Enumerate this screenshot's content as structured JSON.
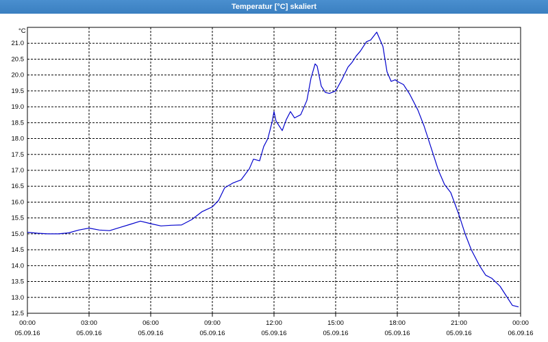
{
  "window": {
    "title": "Temperatur [°C] skaliert"
  },
  "chart_data": {
    "type": "line",
    "unit_label": "°C",
    "ylim": [
      12.5,
      21.5
    ],
    "yticks": [
      "12.5",
      "13.0",
      "13.5",
      "14.0",
      "14.5",
      "15.0",
      "15.5",
      "16.0",
      "16.5",
      "17.0",
      "17.5",
      "18.0",
      "18.5",
      "19.0",
      "19.5",
      "20.0",
      "20.5",
      "21.0"
    ],
    "xlim_hours": [
      0,
      24
    ],
    "xticks": [
      {
        "time": "00:00",
        "date": "05.09.16"
      },
      {
        "time": "03:00",
        "date": "05.09.16"
      },
      {
        "time": "06:00",
        "date": "05.09.16"
      },
      {
        "time": "09:00",
        "date": "05.09.16"
      },
      {
        "time": "12:00",
        "date": "05.09.16"
      },
      {
        "time": "15:00",
        "date": "05.09.16"
      },
      {
        "time": "18:00",
        "date": "05.09.16"
      },
      {
        "time": "21:00",
        "date": "05.09.16"
      },
      {
        "time": "00:00",
        "date": "06.09.16"
      }
    ],
    "grid": true,
    "line_color": "#0000cc",
    "series": [
      {
        "x": [
          0.0,
          0.5,
          1.0,
          1.5,
          2.0,
          2.5,
          3.0,
          3.5,
          4.0,
          4.5,
          5.0,
          5.5,
          6.0,
          6.5,
          7.0,
          7.5,
          8.0,
          8.5,
          9.0,
          9.3,
          9.6,
          10.0,
          10.4,
          10.8,
          11.0,
          11.3,
          11.5,
          11.7,
          11.9,
          12.0,
          12.1,
          12.2,
          12.4,
          12.6,
          12.8,
          13.0,
          13.3,
          13.6,
          13.8,
          14.0,
          14.1,
          14.3,
          14.5,
          14.7,
          15.0,
          15.3,
          15.6,
          15.8,
          16.0,
          16.2,
          16.5,
          16.7,
          17.0,
          17.3,
          17.5,
          17.7,
          17.9,
          18.0,
          18.3,
          18.6,
          19.0,
          19.3,
          19.6,
          20.0,
          20.3,
          20.6,
          21.0,
          21.3,
          21.6,
          22.0,
          22.3,
          22.6,
          23.0,
          23.3,
          23.6,
          23.9
        ],
        "y": [
          15.05,
          15.02,
          15.0,
          15.0,
          15.03,
          15.12,
          15.18,
          15.12,
          15.1,
          15.2,
          15.3,
          15.4,
          15.32,
          15.25,
          15.27,
          15.28,
          15.45,
          15.7,
          15.85,
          16.05,
          16.45,
          16.6,
          16.7,
          17.05,
          17.35,
          17.3,
          17.75,
          18.0,
          18.5,
          18.85,
          18.55,
          18.45,
          18.25,
          18.6,
          18.85,
          18.65,
          18.75,
          19.2,
          19.9,
          20.35,
          20.28,
          19.65,
          19.45,
          19.42,
          19.5,
          19.85,
          20.25,
          20.4,
          20.6,
          20.75,
          21.05,
          21.1,
          21.35,
          20.9,
          20.1,
          19.8,
          19.85,
          19.8,
          19.7,
          19.4,
          18.9,
          18.4,
          17.8,
          17.0,
          16.55,
          16.3,
          15.6,
          15.0,
          14.5,
          14.0,
          13.7,
          13.6,
          13.35,
          13.05,
          12.75,
          12.7
        ]
      }
    ]
  }
}
